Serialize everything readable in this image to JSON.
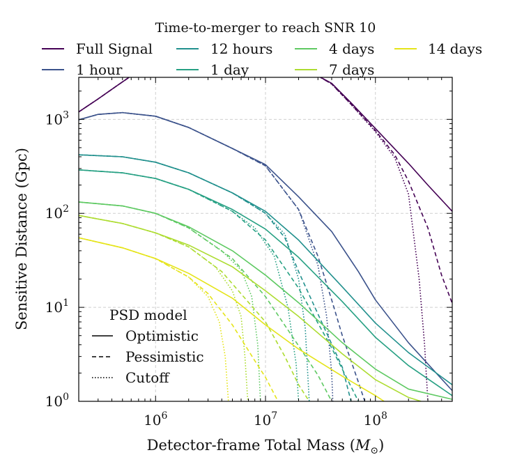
{
  "chart_data": {
    "type": "line",
    "xlabel": "Detector-frame Total Mass (",
    "xlabel_symbol": "M",
    "xlabel_sub": "⊙",
    "xlabel_close": ")",
    "ylabel": "Sensitive Distance (Gpc)",
    "x_scale": "log",
    "y_scale": "log",
    "xlim": [
      200000,
      500000000
    ],
    "ylim": [
      1,
      2800
    ],
    "grid": true,
    "legend_title": "Time-to-merger to reach SNR 10",
    "legend_placement": "top",
    "psd_legend_title": "PSD model",
    "psd_legend_placement": "lower-left",
    "x_ticks": [
      {
        "value": 1000000,
        "base": "10",
        "exp": "6"
      },
      {
        "value": 10000000,
        "base": "10",
        "exp": "7"
      },
      {
        "value": 100000000,
        "base": "10",
        "exp": "8"
      }
    ],
    "y_ticks": [
      {
        "value": 1,
        "base": "10",
        "exp": "0"
      },
      {
        "value": 10,
        "base": "10",
        "exp": "1"
      },
      {
        "value": 100,
        "base": "10",
        "exp": "2"
      },
      {
        "value": 1000,
        "base": "10",
        "exp": "3"
      }
    ],
    "psd_models": [
      {
        "name": "Optimistic",
        "dash": "solid"
      },
      {
        "name": "Pessimistic",
        "dash": "dashed"
      },
      {
        "name": "Cutoff",
        "dash": "dotted"
      }
    ],
    "series": [
      {
        "name": "Full Signal",
        "color": "#440154",
        "optimistic": [
          [
            200000,
            1200
          ],
          [
            300000,
            1650
          ],
          [
            450000,
            2300
          ],
          [
            600000,
            2900
          ],
          [
            30000000,
            2900
          ],
          [
            40000000,
            2420
          ],
          [
            60000000,
            1500
          ],
          [
            100000000,
            800
          ],
          [
            200000000,
            340
          ],
          [
            300000000,
            200
          ],
          [
            500000000,
            105
          ]
        ],
        "pessimistic": [
          [
            200000,
            1200
          ],
          [
            300000,
            1650
          ],
          [
            450000,
            2300
          ],
          [
            600000,
            2900
          ],
          [
            30000000,
            2900
          ],
          [
            40000000,
            2380
          ],
          [
            60000000,
            1450
          ],
          [
            100000000,
            760
          ],
          [
            150000000,
            420
          ],
          [
            200000000,
            220
          ],
          [
            300000000,
            70
          ],
          [
            400000000,
            22
          ],
          [
            500000000,
            11
          ]
        ],
        "cutoff": [
          [
            200000,
            1200
          ],
          [
            300000,
            1650
          ],
          [
            450000,
            2300
          ],
          [
            600000,
            2900
          ],
          [
            30000000,
            2900
          ],
          [
            40000000,
            2380
          ],
          [
            60000000,
            1440
          ],
          [
            100000000,
            740
          ],
          [
            150000000,
            390
          ],
          [
            200000000,
            160
          ],
          [
            250000000,
            20
          ],
          [
            280000000,
            4
          ],
          [
            300000000,
            1
          ]
        ]
      },
      {
        "name": "1 hour",
        "color": "#3b528b",
        "optimistic": [
          [
            200000,
            990
          ],
          [
            300000,
            1130
          ],
          [
            500000,
            1180
          ],
          [
            1000000,
            1080
          ],
          [
            2000000,
            820
          ],
          [
            5000000,
            490
          ],
          [
            10000000,
            330
          ],
          [
            20000000,
            150
          ],
          [
            40000000,
            64
          ],
          [
            70000000,
            24
          ],
          [
            100000000,
            12
          ],
          [
            200000000,
            4.2
          ],
          [
            500000000,
            1.3
          ]
        ],
        "pessimistic": [
          [
            200000,
            990
          ],
          [
            300000,
            1130
          ],
          [
            500000,
            1180
          ],
          [
            1000000,
            1080
          ],
          [
            2000000,
            820
          ],
          [
            5000000,
            490
          ],
          [
            10000000,
            320
          ],
          [
            20000000,
            110
          ],
          [
            30000000,
            35
          ],
          [
            40000000,
            12
          ],
          [
            50000000,
            5
          ],
          [
            70000000,
            1.6
          ],
          [
            80000000,
            1
          ]
        ],
        "cutoff": [
          [
            200000,
            990
          ],
          [
            300000,
            1130
          ],
          [
            500000,
            1180
          ],
          [
            1000000,
            1080
          ],
          [
            2000000,
            820
          ],
          [
            5000000,
            490
          ],
          [
            10000000,
            320
          ],
          [
            20000000,
            110
          ],
          [
            30000000,
            28
          ],
          [
            36000000,
            8
          ],
          [
            40000000,
            2
          ],
          [
            41000000,
            1
          ]
        ]
      },
      {
        "name": "12 hours",
        "color": "#21908d",
        "optimistic": [
          [
            200000,
            420
          ],
          [
            500000,
            400
          ],
          [
            1000000,
            350
          ],
          [
            2000000,
            270
          ],
          [
            5000000,
            165
          ],
          [
            10000000,
            105
          ],
          [
            20000000,
            52
          ],
          [
            50000000,
            16.5
          ],
          [
            100000000,
            6.8
          ],
          [
            200000000,
            3.3
          ],
          [
            500000000,
            1.5
          ]
        ],
        "pessimistic": [
          [
            200000,
            420
          ],
          [
            500000,
            400
          ],
          [
            1000000,
            350
          ],
          [
            2000000,
            270
          ],
          [
            5000000,
            165
          ],
          [
            10000000,
            100
          ],
          [
            15000000,
            55
          ],
          [
            20000000,
            24
          ],
          [
            30000000,
            8.5
          ],
          [
            50000000,
            2.3
          ],
          [
            60000000,
            1
          ]
        ],
        "cutoff": [
          [
            200000,
            420
          ],
          [
            500000,
            400
          ],
          [
            1000000,
            350
          ],
          [
            2000000,
            270
          ],
          [
            5000000,
            165
          ],
          [
            10000000,
            100
          ],
          [
            15000000,
            60
          ],
          [
            20000000,
            20
          ],
          [
            23000000,
            6
          ],
          [
            25000000,
            1
          ]
        ]
      },
      {
        "name": "1 day",
        "color": "#26a083",
        "optimistic": [
          [
            200000,
            290
          ],
          [
            500000,
            270
          ],
          [
            1000000,
            235
          ],
          [
            2000000,
            180
          ],
          [
            5000000,
            110
          ],
          [
            10000000,
            68
          ],
          [
            20000000,
            34
          ],
          [
            50000000,
            11.5
          ],
          [
            100000000,
            4.8
          ],
          [
            200000000,
            2.4
          ],
          [
            500000000,
            1.15
          ]
        ],
        "pessimistic": [
          [
            200000,
            290
          ],
          [
            500000,
            270
          ],
          [
            1000000,
            235
          ],
          [
            2000000,
            180
          ],
          [
            5000000,
            105
          ],
          [
            10000000,
            52
          ],
          [
            20000000,
            16
          ],
          [
            40000000,
            3.7
          ],
          [
            70000000,
            1
          ]
        ],
        "cutoff": [
          [
            200000,
            290
          ],
          [
            500000,
            270
          ],
          [
            1000000,
            235
          ],
          [
            2000000,
            180
          ],
          [
            5000000,
            105
          ],
          [
            8000000,
            70
          ],
          [
            12000000,
            35
          ],
          [
            16000000,
            10
          ],
          [
            19000000,
            2.5
          ],
          [
            20000000,
            1
          ]
        ]
      },
      {
        "name": "4 days",
        "color": "#5ec962",
        "optimistic": [
          [
            200000,
            132
          ],
          [
            500000,
            120
          ],
          [
            1000000,
            100
          ],
          [
            2000000,
            72
          ],
          [
            5000000,
            40
          ],
          [
            10000000,
            22
          ],
          [
            20000000,
            11.2
          ],
          [
            50000000,
            4.2
          ],
          [
            100000000,
            2.2
          ],
          [
            200000000,
            1.35
          ],
          [
            500000000,
            1.05
          ]
        ],
        "pessimistic": [
          [
            200000,
            132
          ],
          [
            500000,
            120
          ],
          [
            1000000,
            100
          ],
          [
            2000000,
            70
          ],
          [
            5000000,
            33
          ],
          [
            10000000,
            13
          ],
          [
            20000000,
            3.9
          ],
          [
            30000000,
            1.9
          ],
          [
            40000000,
            1
          ]
        ],
        "cutoff": [
          [
            200000,
            132
          ],
          [
            500000,
            120
          ],
          [
            1000000,
            100
          ],
          [
            2000000,
            70
          ],
          [
            4000000,
            40
          ],
          [
            6000000,
            25
          ],
          [
            7500000,
            13
          ],
          [
            8500000,
            4
          ],
          [
            9000000,
            1
          ]
        ]
      },
      {
        "name": "7 days",
        "color": "#addc30",
        "optimistic": [
          [
            200000,
            95
          ],
          [
            500000,
            78
          ],
          [
            1000000,
            62
          ],
          [
            2000000,
            46
          ],
          [
            5000000,
            27
          ],
          [
            10000000,
            15
          ],
          [
            20000000,
            8
          ],
          [
            50000000,
            3.2
          ],
          [
            100000000,
            1.7
          ],
          [
            200000000,
            1.1
          ],
          [
            260000000,
            1
          ]
        ],
        "pessimistic": [
          [
            200000,
            95
          ],
          [
            500000,
            78
          ],
          [
            1000000,
            62
          ],
          [
            2000000,
            44
          ],
          [
            4000000,
            24
          ],
          [
            10000000,
            7
          ],
          [
            15000000,
            3
          ],
          [
            20000000,
            1.5
          ],
          [
            25000000,
            1
          ]
        ],
        "cutoff": [
          [
            200000,
            95
          ],
          [
            500000,
            78
          ],
          [
            1000000,
            62
          ],
          [
            2000000,
            44
          ],
          [
            3500000,
            27
          ],
          [
            5000000,
            15
          ],
          [
            6000000,
            8
          ],
          [
            6500000,
            3
          ],
          [
            6900000,
            1
          ]
        ]
      },
      {
        "name": "14 days",
        "color": "#e5e419",
        "optimistic": [
          [
            200000,
            55
          ],
          [
            500000,
            43
          ],
          [
            1000000,
            33
          ],
          [
            2000000,
            23
          ],
          [
            5000000,
            12.5
          ],
          [
            10000000,
            6.5
          ],
          [
            20000000,
            3.6
          ],
          [
            50000000,
            1.85
          ],
          [
            100000000,
            1.15
          ],
          [
            120000000,
            1
          ]
        ],
        "pessimistic": [
          [
            200000,
            55
          ],
          [
            500000,
            43
          ],
          [
            1000000,
            33
          ],
          [
            2000000,
            21
          ],
          [
            3000000,
            14
          ],
          [
            5000000,
            6.5
          ],
          [
            8000000,
            2.7
          ],
          [
            10000000,
            1.8
          ],
          [
            13000000,
            1
          ]
        ],
        "cutoff": [
          [
            200000,
            55
          ],
          [
            500000,
            43
          ],
          [
            1000000,
            33
          ],
          [
            2000000,
            21
          ],
          [
            3000000,
            13
          ],
          [
            3800000,
            7
          ],
          [
            4300000,
            3
          ],
          [
            4600000,
            1
          ]
        ]
      }
    ]
  }
}
